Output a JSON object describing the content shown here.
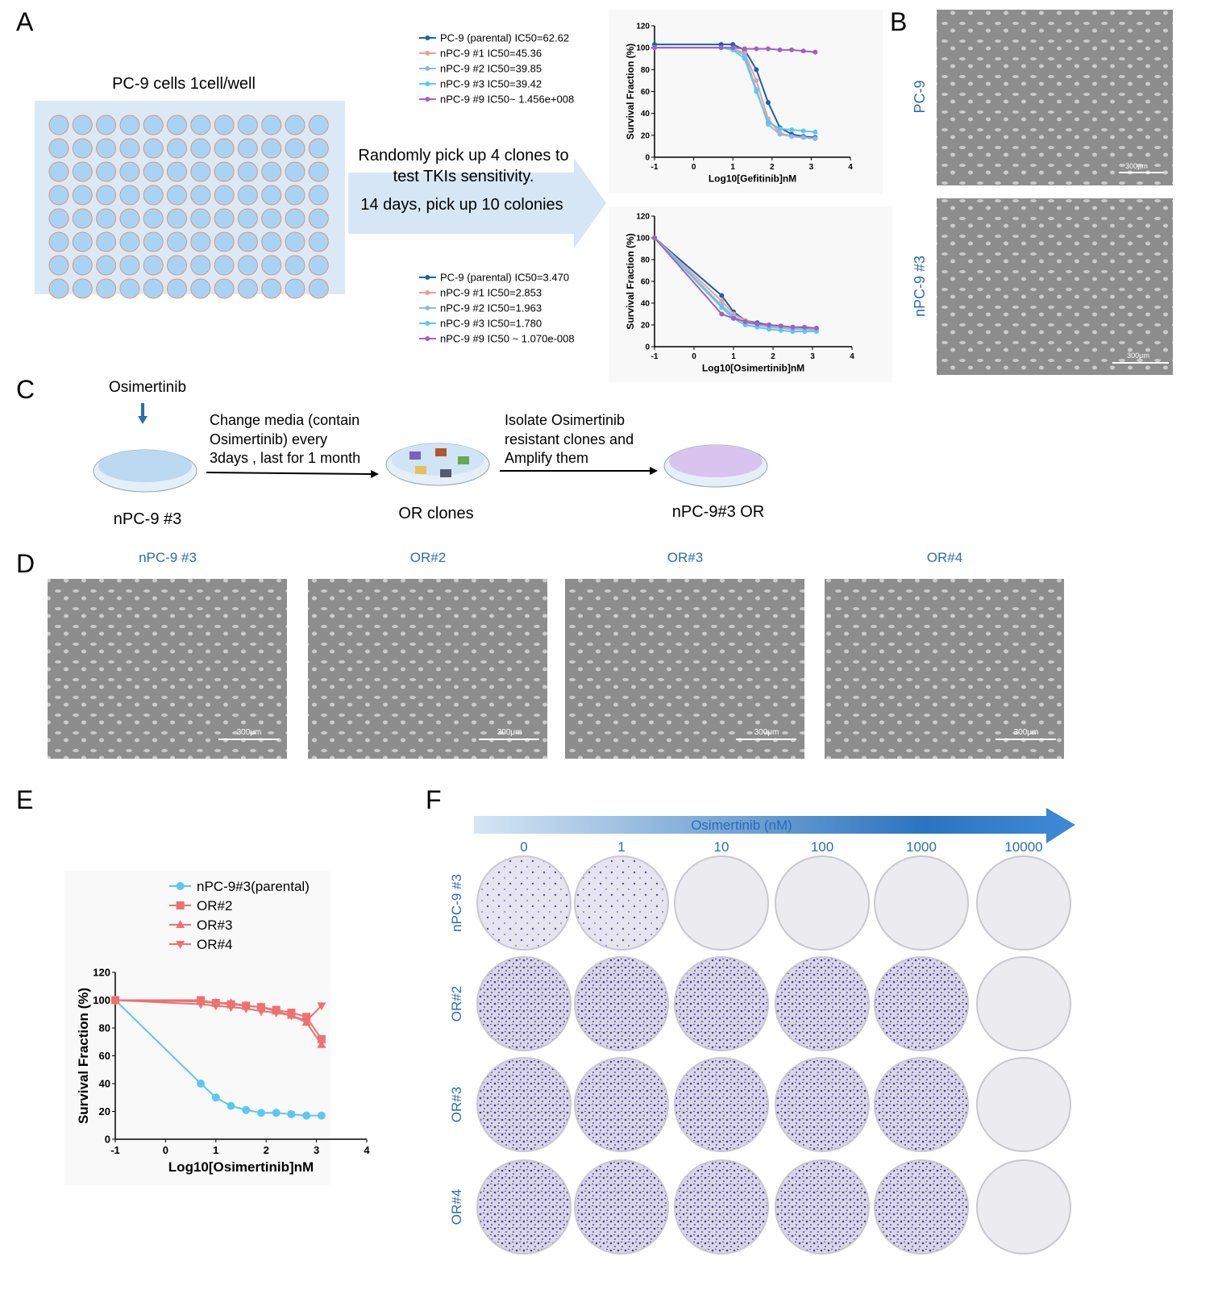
{
  "panels": {
    "a": "A",
    "b": "B",
    "c": "C",
    "d": "D",
    "e": "E",
    "f": "F"
  },
  "panel_a": {
    "plate_title": "PC-9 cells  1cell/well",
    "arrow_lines": [
      "Randomly pick up 4 clones to",
      "test TKIs sensitivity.",
      "14 days, pick up 10 colonies"
    ]
  },
  "panel_b": {
    "rows": [
      {
        "label": "PC-9",
        "scale": "300μm"
      },
      {
        "label": "nPC-9 #3",
        "scale": "300μm"
      }
    ]
  },
  "panel_c": {
    "drug": "Osimertinib",
    "step1": [
      "Change  media (contain",
      "Osimertinib) every",
      "3days , last for 1 month"
    ],
    "step2": [
      "Isolate Osimertinib",
      "resistant  clones and",
      " Amplify them"
    ],
    "dishes": [
      "nPC-9 #3",
      "OR clones",
      "nPC-9#3 OR"
    ]
  },
  "panel_d": {
    "images": [
      {
        "title": "nPC-9 #3",
        "scale": "300μm"
      },
      {
        "title": "OR#2",
        "scale": "300μm"
      },
      {
        "title": "OR#3",
        "scale": "300μm"
      },
      {
        "title": "OR#4",
        "scale": "300μm"
      }
    ]
  },
  "panel_f": {
    "arrow": "Osimertinib (nM)",
    "columns": [
      "0",
      "1",
      "10",
      "100",
      "1000",
      "10000"
    ],
    "rows": [
      "nPC-9 #3",
      "OR#2",
      "OR#3",
      "OR#4"
    ]
  },
  "chart_data": [
    {
      "type": "line",
      "x_label": "Log10[Gefitinib]nM",
      "y_label": "Survival Fraction (%)",
      "xlim": [
        -1,
        4
      ],
      "ylim": [
        0,
        120
      ],
      "xticks": [
        -1,
        0,
        1,
        2,
        3,
        4
      ],
      "yticks": [
        0,
        20,
        40,
        60,
        80,
        100,
        120
      ],
      "x": [
        -1,
        0.7,
        1.0,
        1.3,
        1.6,
        1.9,
        2.2,
        2.5,
        2.8,
        3.1
      ],
      "series": [
        {
          "name": "PC-9 (parental) IC50=62.62",
          "color": "#1f5fa8",
          "marker": "circle",
          "values": [
            103,
            103,
            103,
            98,
            80,
            50,
            27,
            21,
            19,
            18
          ]
        },
        {
          "name": "nPC-9 #1 IC50=45.36",
          "color": "#e8a09a",
          "marker": "circle",
          "values": [
            100,
            100,
            99,
            95,
            70,
            35,
            22,
            19,
            18,
            17
          ]
        },
        {
          "name": "nPC-9 #2 IC50=39.85",
          "color": "#8fb8e6",
          "marker": "circle",
          "values": [
            100,
            100,
            99,
            93,
            62,
            30,
            21,
            19,
            18,
            17
          ]
        },
        {
          "name": "nPC-9 #3 IC50=39.42",
          "color": "#5bc8ee",
          "marker": "circle",
          "values": [
            100,
            100,
            98,
            90,
            60,
            32,
            26,
            25,
            24,
            23
          ]
        },
        {
          "name": "nPC-9 #9 IC50~ 1.456e+008",
          "color": "#a45fc0",
          "marker": "circle",
          "values": [
            100,
            100,
            100,
            99,
            99,
            99,
            98,
            98,
            97,
            96
          ]
        }
      ]
    },
    {
      "type": "line",
      "x_label": "Log10[Osimertinib]nM",
      "y_label": "Survival Fraction (%)",
      "xlim": [
        -1,
        4
      ],
      "ylim": [
        0,
        120
      ],
      "xticks": [
        -1,
        0,
        1,
        2,
        3,
        4
      ],
      "yticks": [
        0,
        20,
        40,
        60,
        80,
        100,
        120
      ],
      "x": [
        -1,
        0.7,
        1.0,
        1.3,
        1.6,
        1.9,
        2.2,
        2.5,
        2.8,
        3.1
      ],
      "series": [
        {
          "name": "PC-9 (parental) IC50=3.470",
          "color": "#1f5fa8",
          "marker": "circle",
          "values": [
            100,
            47,
            32,
            24,
            22,
            20,
            19,
            18,
            17,
            16
          ]
        },
        {
          "name": "nPC-9 #1 IC50=2.853",
          "color": "#e8a09a",
          "marker": "circle",
          "values": [
            100,
            42,
            30,
            24,
            21,
            19,
            18,
            17,
            16,
            16
          ]
        },
        {
          "name": "nPC-9 #2 IC50=1.963",
          "color": "#8fb8e6",
          "marker": "circle",
          "values": [
            100,
            38,
            28,
            22,
            20,
            18,
            17,
            16,
            16,
            15
          ]
        },
        {
          "name": "nPC-9 #3 IC50=1.780",
          "color": "#5bc8ee",
          "marker": "circle",
          "values": [
            100,
            36,
            26,
            20,
            18,
            16,
            15,
            14,
            14,
            14
          ]
        },
        {
          "name": "nPC-9 #9 IC50 ~ 1.070e-008",
          "color": "#a45fc0",
          "marker": "circle",
          "values": [
            100,
            30,
            26,
            23,
            21,
            20,
            19,
            18,
            18,
            17
          ]
        }
      ]
    },
    {
      "type": "line",
      "x_label": "Log10[Osimertinib]nM",
      "y_label": "Survival Fraction (%)",
      "xlim": [
        -1,
        4
      ],
      "ylim": [
        0,
        120
      ],
      "xticks": [
        -1,
        0,
        1,
        2,
        3,
        4
      ],
      "yticks": [
        0,
        20,
        40,
        60,
        80,
        100,
        120
      ],
      "x": [
        -1,
        0.7,
        1.0,
        1.3,
        1.6,
        1.9,
        2.2,
        2.5,
        2.8,
        3.1
      ],
      "series": [
        {
          "name": "nPC-9#3(parental)",
          "color": "#5bc8f0",
          "marker": "circle",
          "values": [
            100,
            40,
            30,
            24,
            21,
            19,
            19,
            18,
            17,
            17
          ]
        },
        {
          "name": "OR#2",
          "color": "#f07070",
          "marker": "square",
          "values": [
            100,
            100,
            98,
            97,
            96,
            95,
            93,
            91,
            88,
            72
          ]
        },
        {
          "name": "OR#3",
          "color": "#f07070",
          "marker": "triangle",
          "values": [
            100,
            99,
            98,
            98,
            96,
            95,
            92,
            89,
            84,
            68
          ]
        },
        {
          "name": "OR#4",
          "color": "#f07070",
          "marker": "triangle-down",
          "values": [
            100,
            97,
            96,
            95,
            94,
            92,
            91,
            89,
            85,
            96
          ]
        }
      ]
    }
  ]
}
